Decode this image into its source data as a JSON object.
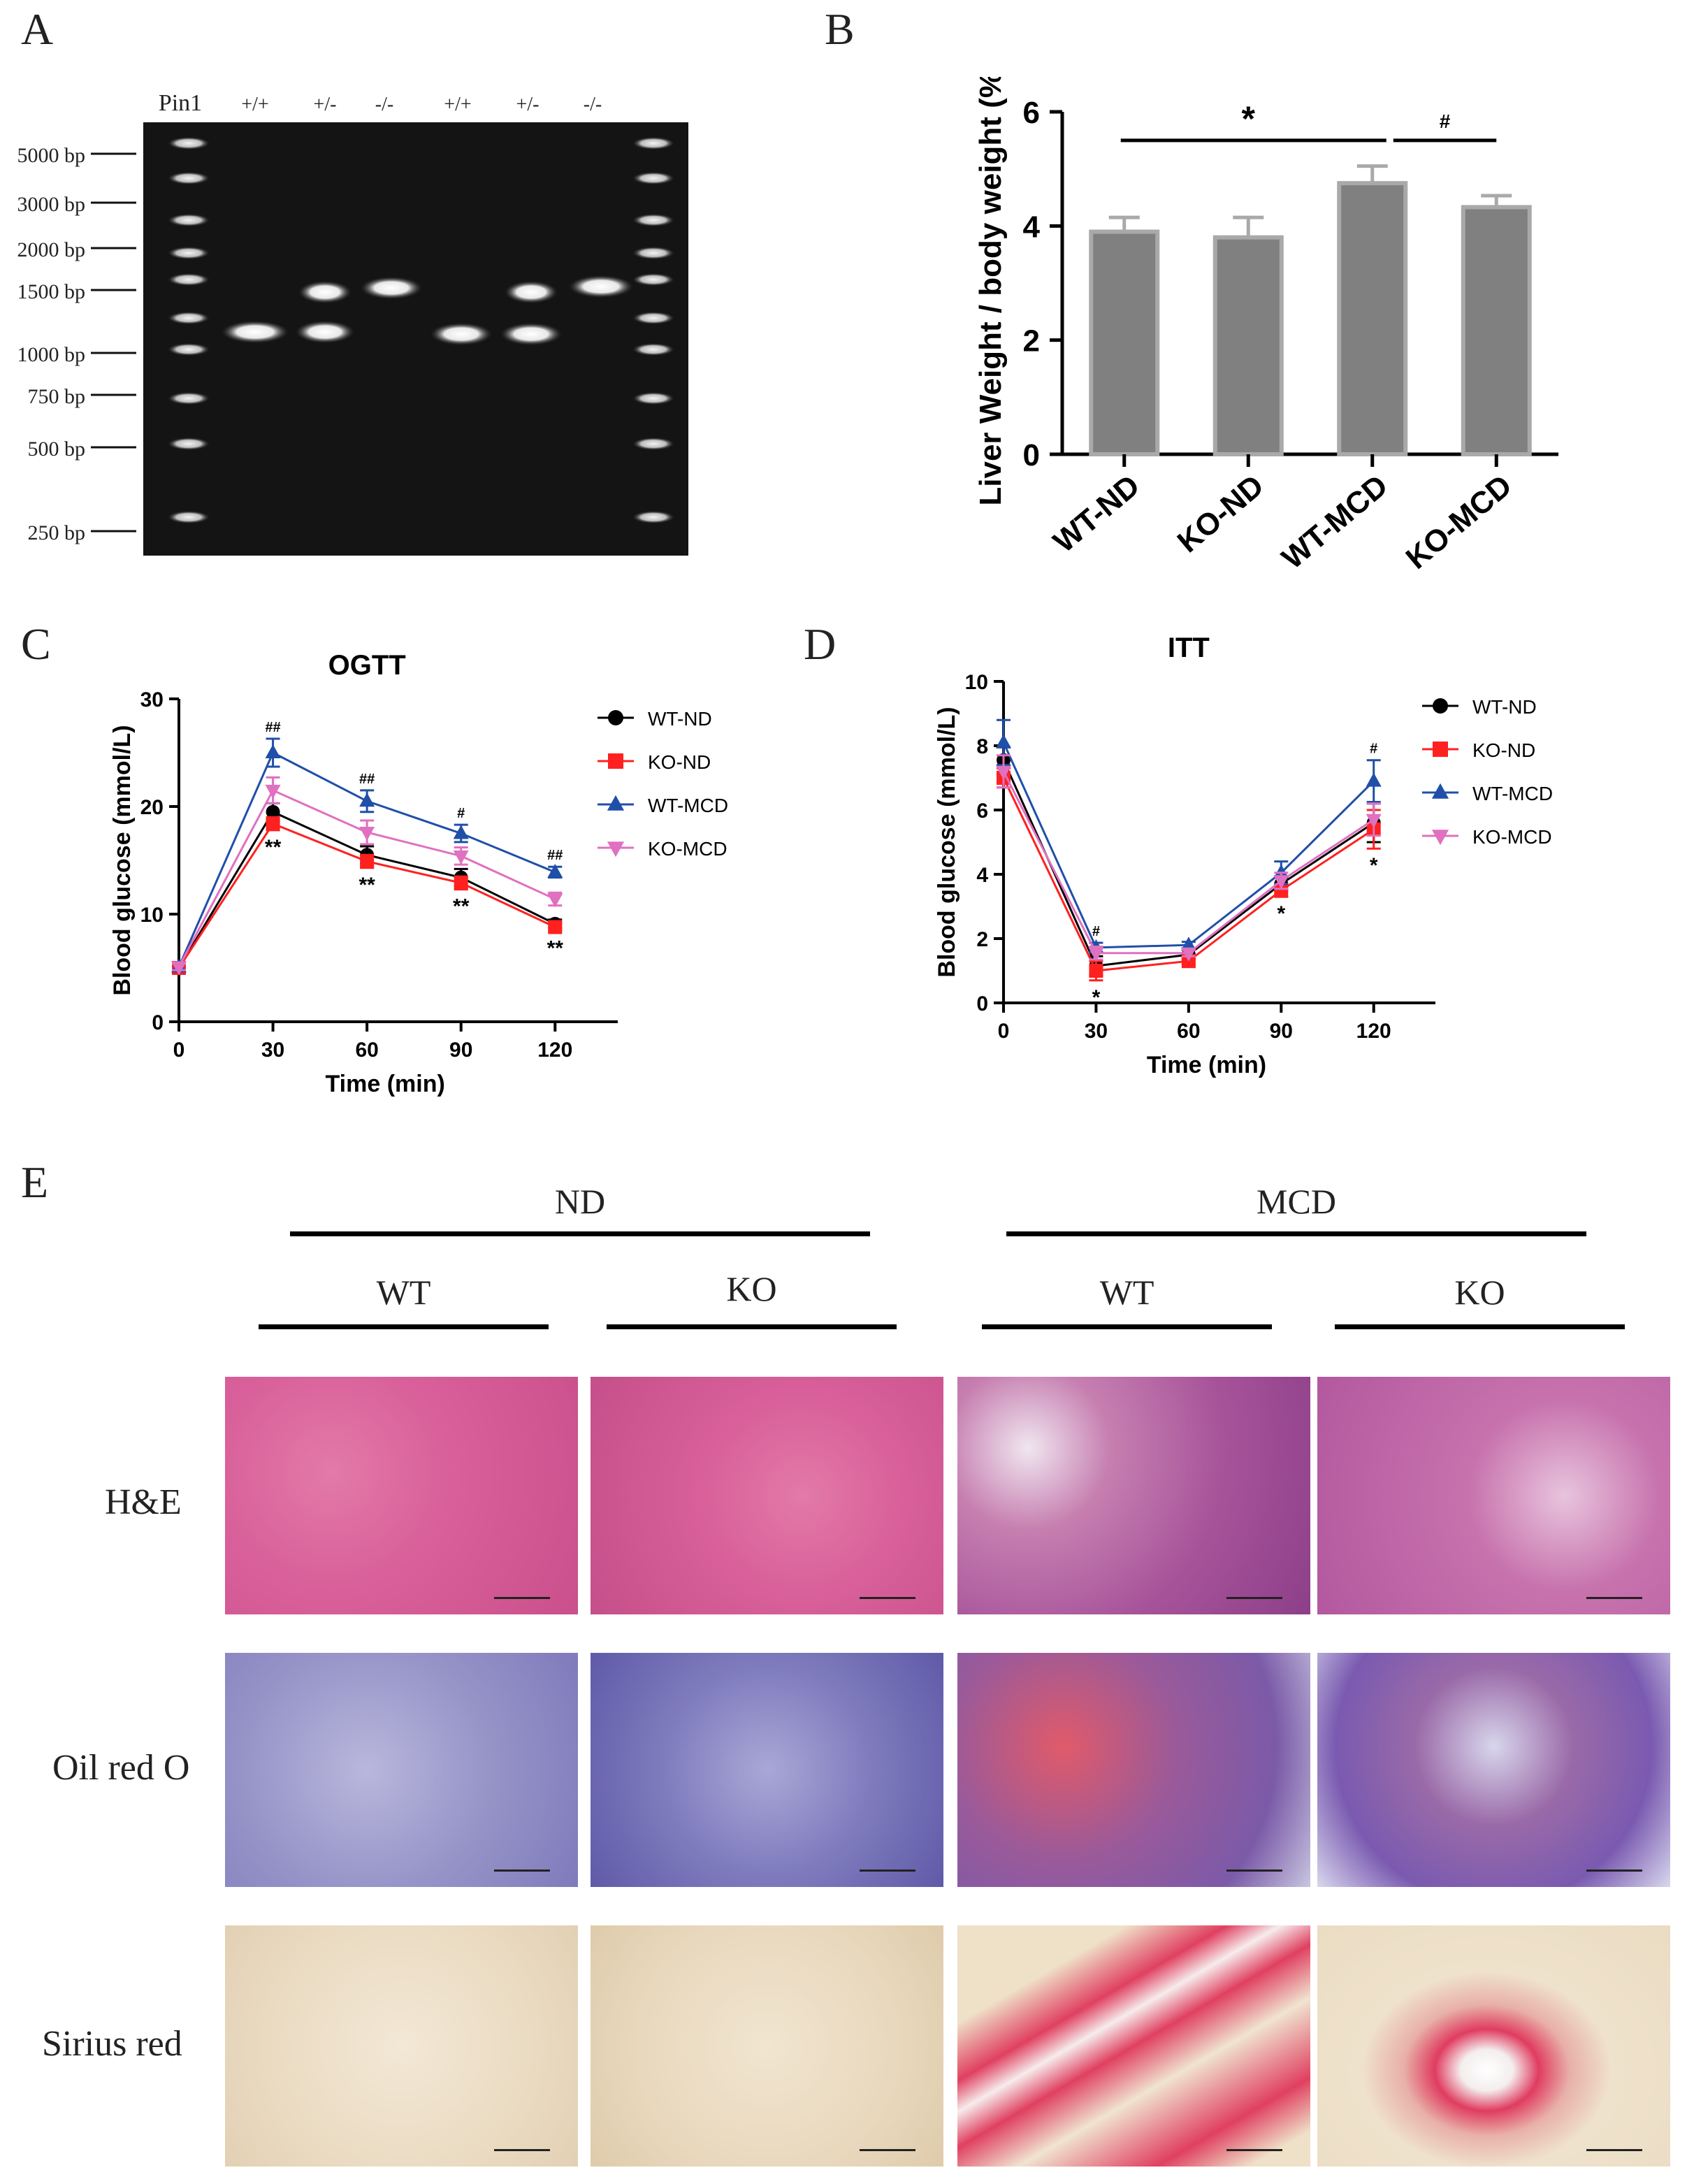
{
  "panels": {
    "A": "A",
    "B": "B",
    "C": "C",
    "D": "D",
    "E": "E"
  },
  "gel": {
    "lane_labels": [
      "Pin1",
      "+/+",
      "+/-",
      "-/-",
      "+/+",
      "+/-",
      "-/-"
    ],
    "ladder": [
      "5000 bp",
      "3000 bp",
      "2000 bp",
      "1500 bp",
      "1000 bp",
      "750 bp",
      "500 bp",
      "250 bp"
    ]
  },
  "chart_data": [
    {
      "type": "bar",
      "panel": "B",
      "categories": [
        "WT-ND",
        "KO-ND",
        "WT-MCD",
        "KO-MCD"
      ],
      "values": [
        3.9,
        3.8,
        4.75,
        4.33
      ],
      "errors": [
        0.25,
        0.35,
        0.3,
        0.2
      ],
      "ylabel": "Liver Weight / body weight (%)",
      "ylim": [
        0,
        6
      ],
      "yticks": [
        0,
        2,
        4,
        6
      ],
      "color": "#808080",
      "edge_color": "#a9a9a9",
      "annotations": [
        {
          "label": "*",
          "from": "WT-ND",
          "to": "WT-MCD"
        },
        {
          "label": "#",
          "from": "WT-MCD",
          "to": "KO-MCD"
        }
      ]
    },
    {
      "type": "line",
      "panel": "C",
      "title": "OGTT",
      "xlabel": "Time (min)",
      "ylabel": "Blood glucose (mmol/L)",
      "x": [
        0,
        30,
        60,
        90,
        120
      ],
      "xlim": [
        0,
        140
      ],
      "ylim": [
        0,
        30
      ],
      "yticks": [
        0,
        10,
        20,
        30
      ],
      "series": [
        {
          "name": "WT-ND",
          "color": "#000000",
          "marker": "circle",
          "values": [
            5.0,
            19.5,
            15.5,
            13.4,
            9.1
          ],
          "errors": [
            0.3,
            0.8,
            0.8,
            0.8,
            0.4
          ]
        },
        {
          "name": "KO-ND",
          "color": "#ff2020",
          "marker": "square",
          "values": [
            5.0,
            18.4,
            14.9,
            12.9,
            8.8
          ],
          "errors": [
            0.3,
            0.6,
            0.6,
            0.6,
            0.4
          ]
        },
        {
          "name": "WT-MCD",
          "color": "#1f4fa8",
          "marker": "triangle-up",
          "values": [
            5.1,
            25.0,
            20.5,
            17.5,
            13.9
          ],
          "errors": [
            0.3,
            1.3,
            1.0,
            0.8,
            0.5
          ]
        },
        {
          "name": "KO-MCD",
          "color": "#e070c0",
          "marker": "triangle-down",
          "values": [
            5.1,
            21.5,
            17.6,
            15.4,
            11.4
          ],
          "errors": [
            0.3,
            1.2,
            1.1,
            0.8,
            0.6
          ]
        }
      ],
      "annotations_top": [
        {
          "x": 30,
          "label": "##"
        },
        {
          "x": 60,
          "label": "##"
        },
        {
          "x": 90,
          "label": "#"
        },
        {
          "x": 120,
          "label": "##"
        }
      ],
      "annotations_bottom": [
        {
          "x": 30,
          "label": "**"
        },
        {
          "x": 60,
          "label": "**"
        },
        {
          "x": 90,
          "label": "**"
        },
        {
          "x": 120,
          "label": "**"
        }
      ]
    },
    {
      "type": "line",
      "panel": "D",
      "title": "ITT",
      "xlabel": "Time (min)",
      "ylabel": "Blood glucose (mmol/L)",
      "x": [
        0,
        30,
        60,
        90,
        120
      ],
      "xlim": [
        0,
        140
      ],
      "ylim": [
        0,
        10
      ],
      "yticks": [
        0,
        2,
        4,
        6,
        8,
        10
      ],
      "series": [
        {
          "name": "WT-ND",
          "color": "#000000",
          "marker": "circle",
          "values": [
            7.55,
            1.15,
            1.5,
            3.7,
            5.6
          ],
          "errors": [
            0.4,
            0.3,
            0.15,
            0.2,
            0.6
          ]
        },
        {
          "name": "KO-ND",
          "color": "#ff2020",
          "marker": "square",
          "values": [
            7.0,
            1.0,
            1.3,
            3.5,
            5.4
          ],
          "errors": [
            0.3,
            0.3,
            0.1,
            0.2,
            0.6
          ]
        },
        {
          "name": "WT-MCD",
          "color": "#1f4fa8",
          "marker": "triangle-up",
          "values": [
            8.1,
            1.72,
            1.8,
            4.05,
            6.9
          ],
          "errors": [
            0.7,
            0.15,
            0.1,
            0.35,
            0.65
          ]
        },
        {
          "name": "KO-MCD",
          "color": "#e070c0",
          "marker": "triangle-down",
          "values": [
            7.2,
            1.55,
            1.55,
            3.8,
            5.7
          ],
          "errors": [
            0.5,
            0.2,
            0.1,
            0.25,
            0.5
          ]
        }
      ],
      "annotations_top": [
        {
          "x": 30,
          "label": "#"
        },
        {
          "x": 120,
          "label": "#"
        }
      ],
      "annotations_bottom": [
        {
          "x": 30,
          "label": "*"
        },
        {
          "x": 90,
          "label": "*"
        },
        {
          "x": 120,
          "label": "*"
        }
      ]
    }
  ],
  "histology": {
    "diet_headers": [
      "ND",
      "MCD"
    ],
    "genotype_headers": [
      "WT",
      "KO",
      "WT",
      "KO"
    ],
    "stains": [
      "H&E",
      "Oil red O",
      "Sirius red"
    ]
  }
}
